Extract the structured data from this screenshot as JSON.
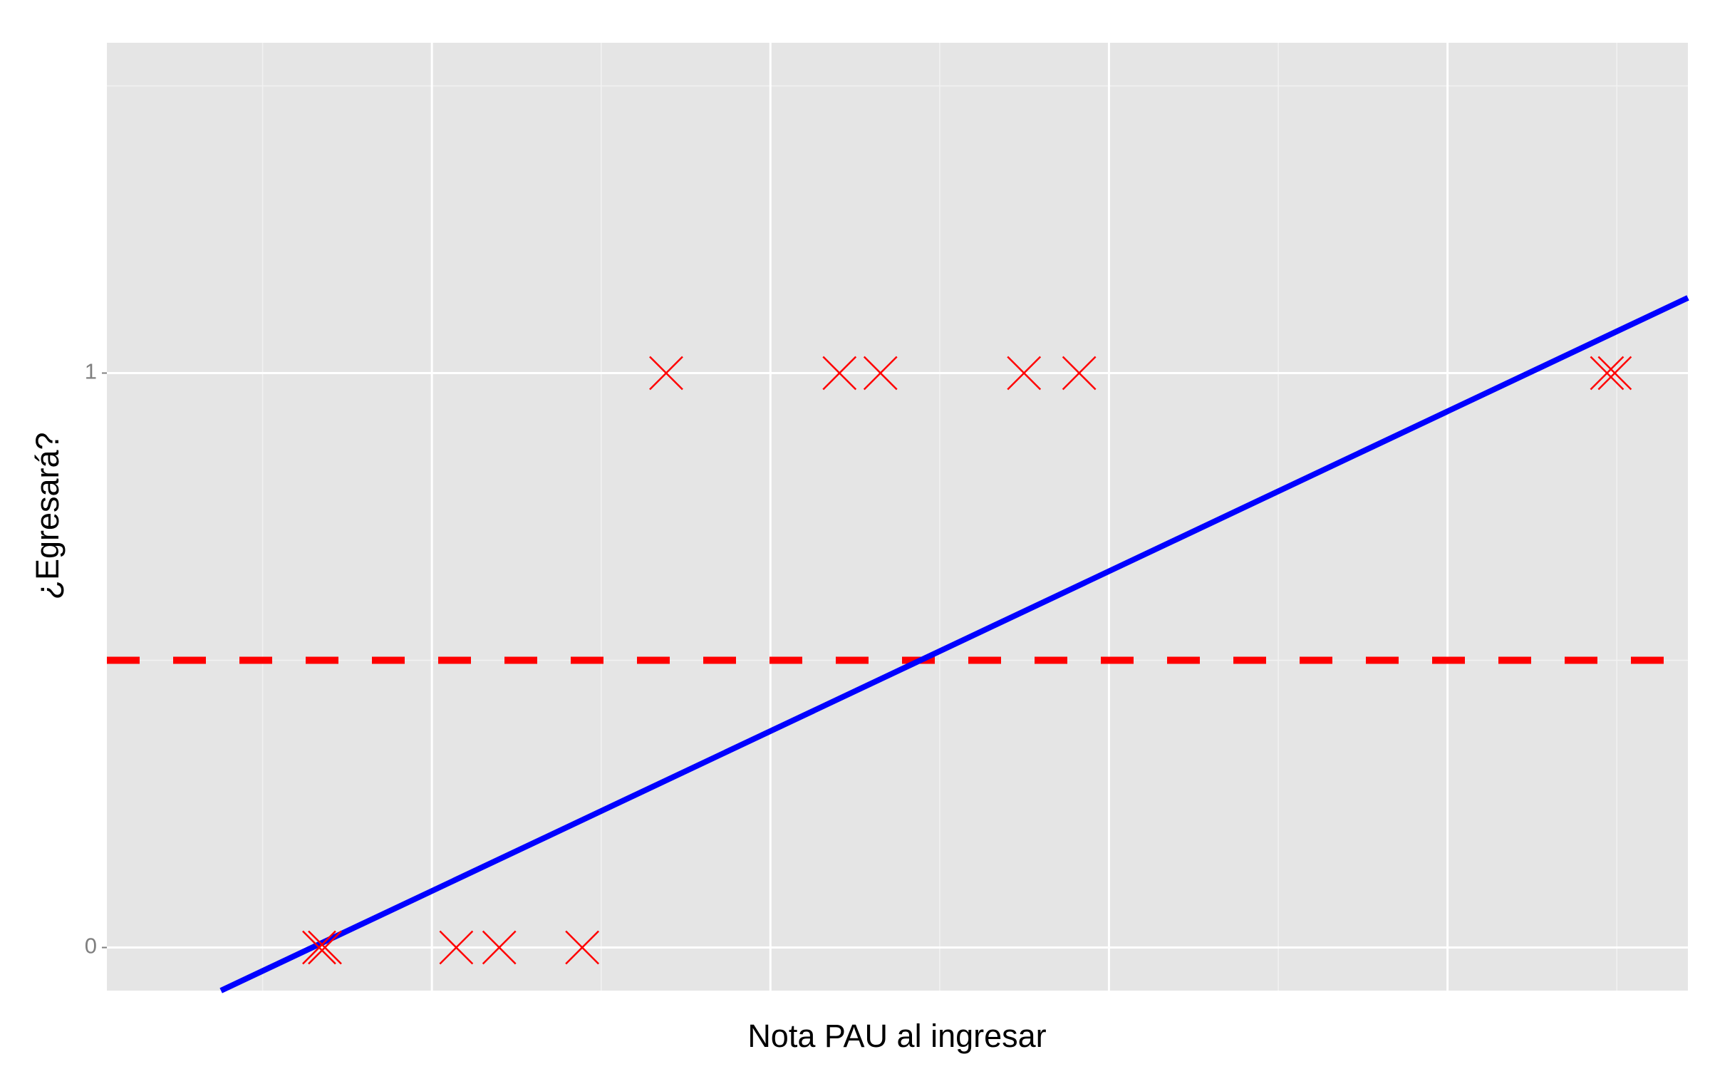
{
  "chart_data": {
    "type": "scatter",
    "x_label": "Nota PAU al ingresar",
    "y_label": "¿Egresará?",
    "xlim": [
      0.04,
      4.71
    ],
    "ylim": [
      -0.075,
      1.575
    ],
    "xticks": [
      1,
      2,
      3,
      4
    ],
    "x_minor_ticks": [
      0.5,
      1.5,
      2.5,
      3.5,
      4.5
    ],
    "yticks": [
      0,
      1
    ],
    "y_minor_ticks": [
      0.5,
      1.5
    ],
    "grid": true,
    "series": [
      {
        "color": "#ff0000",
        "marker": "x",
        "x": [
          0.667,
          0.684,
          1.072,
          1.199,
          1.444,
          1.692,
          2.204,
          2.325,
          2.749,
          2.912,
          4.471,
          4.494
        ],
        "values": [
          0,
          0,
          0,
          0,
          0,
          1,
          1,
          1,
          1,
          1,
          1,
          1
        ]
      }
    ],
    "fit_line": {
      "color": "#0000ff",
      "x": [
        0.377,
        4.71
      ],
      "values": [
        -0.075,
        1.131
      ]
    },
    "threshold": {
      "color": "#ff0000",
      "value": 0.5,
      "dashed": true
    }
  }
}
